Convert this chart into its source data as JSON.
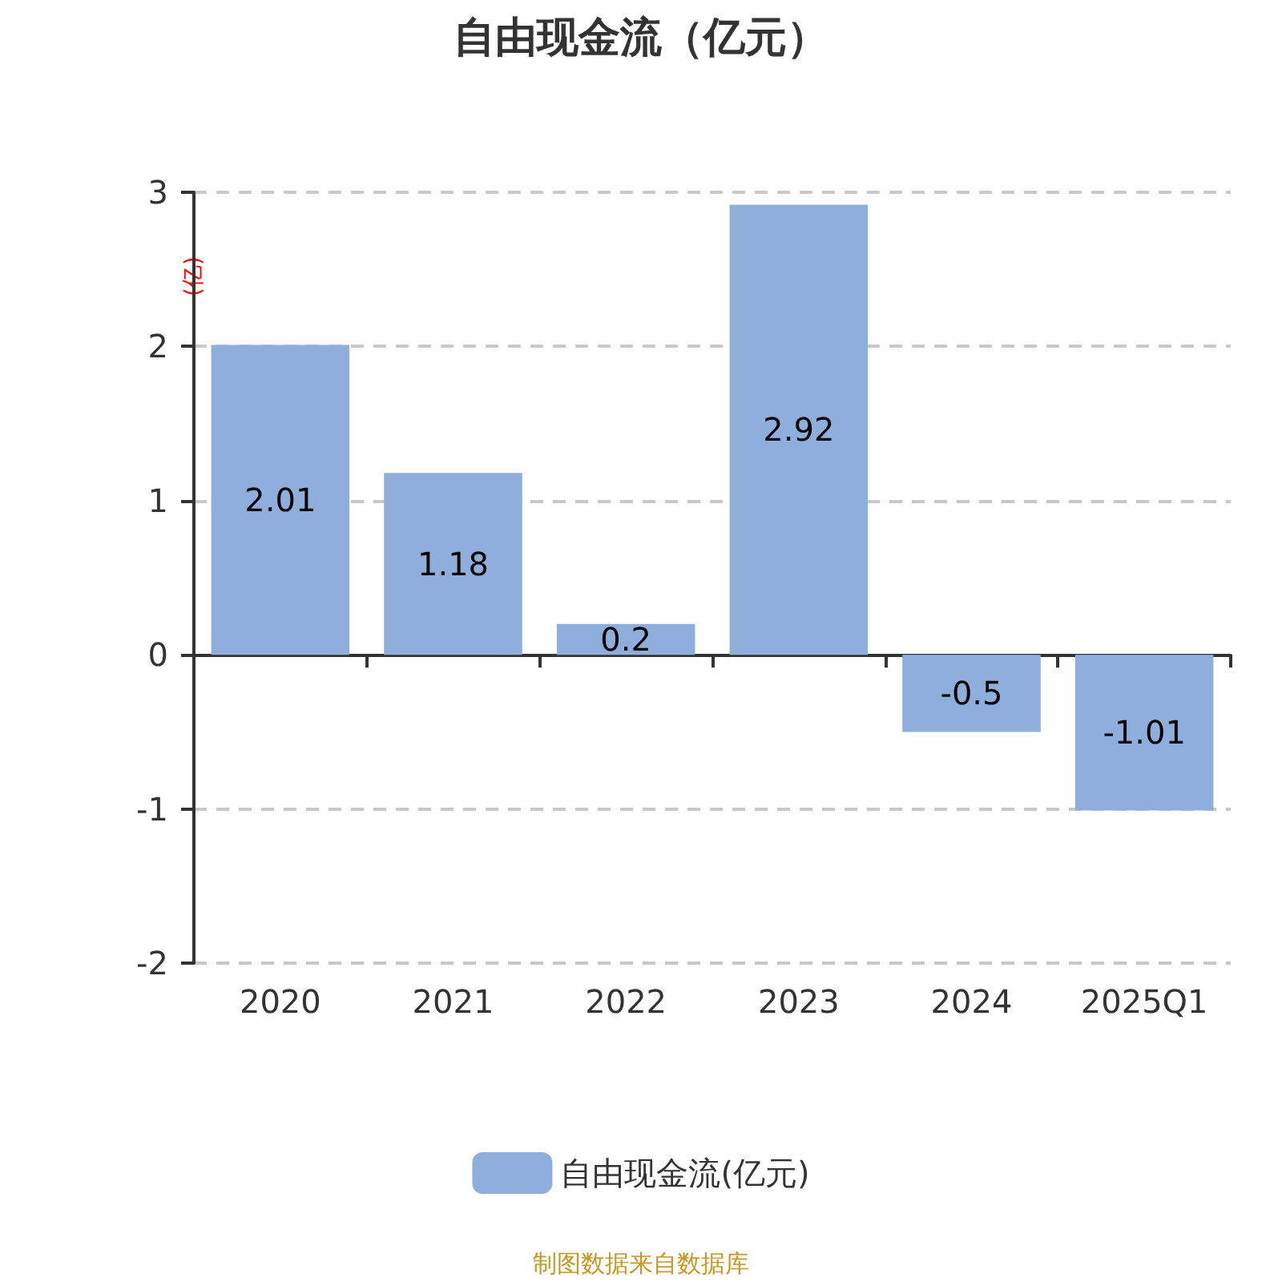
{
  "chart_data": {
    "type": "bar",
    "title": "自由现金流（亿元）",
    "ylabel": "(亿)",
    "categories": [
      "2020",
      "2021",
      "2022",
      "2023",
      "2024",
      "2025Q1"
    ],
    "series": [
      {
        "name": "自由现金流(亿元)",
        "color": "#8eaedb",
        "values": [
          2.01,
          1.18,
          0.2,
          2.92,
          -0.5,
          -1.01
        ]
      }
    ],
    "ylim": [
      -2,
      3
    ],
    "yticks": [
      -2,
      -1,
      0,
      1,
      2,
      3
    ],
    "grid": "y",
    "legend": "bottom",
    "data_labels": true,
    "annotations": [
      "制图数据来自数据库"
    ]
  }
}
